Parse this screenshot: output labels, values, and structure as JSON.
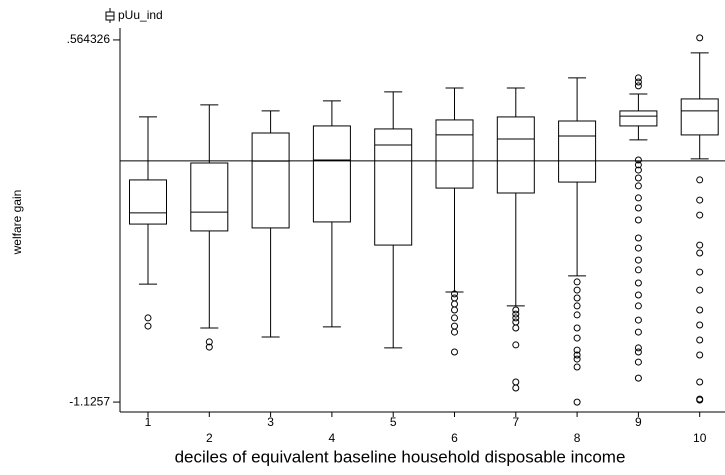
{
  "chart_data": {
    "type": "box",
    "legend_label": "pUu_ind",
    "xlabel": "deciles of equivalent baseline household disposable income",
    "ylabel": "welfare gain",
    "categories": [
      "1",
      "2",
      "3",
      "4",
      "5",
      "6",
      "7",
      "8",
      "9",
      "10"
    ],
    "ylim": [
      -1.172,
      0.62
    ],
    "yticks": [
      {
        "value": 0.564326,
        "label": ".564326"
      },
      -1.1257
    ],
    "yline": 0,
    "boxes": [
      {
        "whisker_low": -0.575,
        "q1": -0.295,
        "median": -0.243,
        "q3": -0.089,
        "whisker_high": 0.205,
        "outliers": [
          -0.733,
          -0.771
        ]
      },
      {
        "whisker_low": -0.78,
        "q1": -0.327,
        "median": -0.239,
        "q3": -0.01,
        "whisker_high": 0.261,
        "outliers": [
          -0.845,
          -0.869
        ]
      },
      {
        "whisker_low": -0.822,
        "q1": -0.313,
        "median": -0.001,
        "q3": 0.13,
        "whisker_high": 0.233,
        "outliers": []
      },
      {
        "whisker_low": -0.775,
        "q1": -0.285,
        "median": 0.004,
        "q3": 0.163,
        "whisker_high": 0.28,
        "outliers": []
      },
      {
        "whisker_low": -0.873,
        "q1": -0.393,
        "median": 0.074,
        "q3": 0.149,
        "whisker_high": 0.322,
        "outliers": []
      },
      {
        "whisker_low": -0.612,
        "q1": -0.127,
        "median": 0.121,
        "q3": 0.191,
        "whisker_high": 0.34,
        "outliers": [
          -0.621,
          -0.64,
          -0.668,
          -0.696,
          -0.733,
          -0.771,
          -0.799,
          -0.892
        ]
      },
      {
        "whisker_low": -0.677,
        "q1": -0.15,
        "median": 0.102,
        "q3": 0.205,
        "whisker_high": 0.34,
        "outliers": [
          -0.696,
          -0.715,
          -0.733,
          -0.752,
          -0.78,
          -0.859,
          -1.032,
          -1.06
        ]
      },
      {
        "whisker_low": -0.537,
        "q1": -0.099,
        "median": 0.116,
        "q3": 0.186,
        "whisker_high": 0.387,
        "outliers": [
          -0.565,
          -0.603,
          -0.64,
          -0.677,
          -0.719,
          -0.78,
          -0.827,
          -0.883,
          -0.906,
          -0.925,
          -0.962,
          -1.126
        ]
      },
      {
        "whisker_low": 0.098,
        "q1": 0.163,
        "median": 0.209,
        "q3": 0.233,
        "whisker_high": 0.312,
        "outliers": [
          0.387,
          0.368,
          0.35,
          0.004,
          -0.019,
          -0.043,
          -0.08,
          -0.117,
          -0.173,
          -0.22,
          -0.276,
          -0.36,
          -0.407,
          -0.463,
          -0.509,
          -0.57,
          -0.626,
          -0.677,
          -0.743,
          -0.799,
          -0.873,
          -0.892,
          -0.939,
          -1.014
        ]
      },
      {
        "whisker_low": 0.009,
        "q1": 0.121,
        "median": 0.233,
        "q3": 0.289,
        "whisker_high": 0.504,
        "outliers": [
          0.574,
          -0.089,
          -0.183,
          -0.253,
          -0.393,
          -0.43,
          -0.519,
          -0.603,
          -0.696,
          -0.766,
          -0.836,
          -0.906,
          -1.032,
          -1.112,
          -1.116
        ]
      }
    ]
  }
}
